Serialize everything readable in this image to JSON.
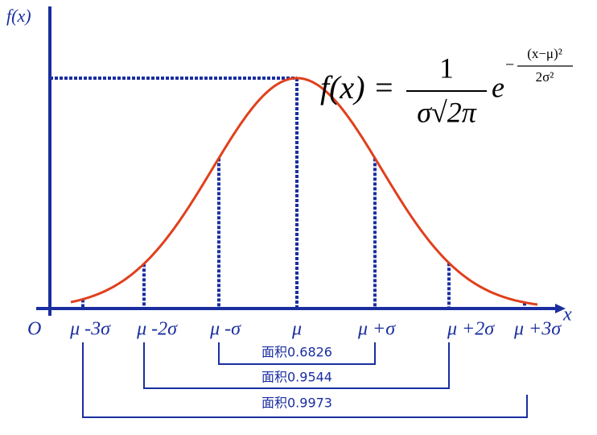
{
  "axes": {
    "y_label": "f(x)",
    "x_label": "x",
    "origin": "O"
  },
  "ticks": [
    "μ -3σ",
    "μ -2σ",
    "μ -σ",
    "μ",
    "μ +σ",
    "μ +2σ",
    "μ +3σ"
  ],
  "areas": [
    "面积0.6826",
    "面积0.9544",
    "面积0.9973"
  ],
  "formula": {
    "lhs": "f(x) =",
    "numerator": "1",
    "denominator": "σ√2π",
    "base": "e",
    "exponent_sign": "−",
    "exponent_numerator": "(x−μ)²",
    "exponent_denominator": "2σ²"
  }
}
